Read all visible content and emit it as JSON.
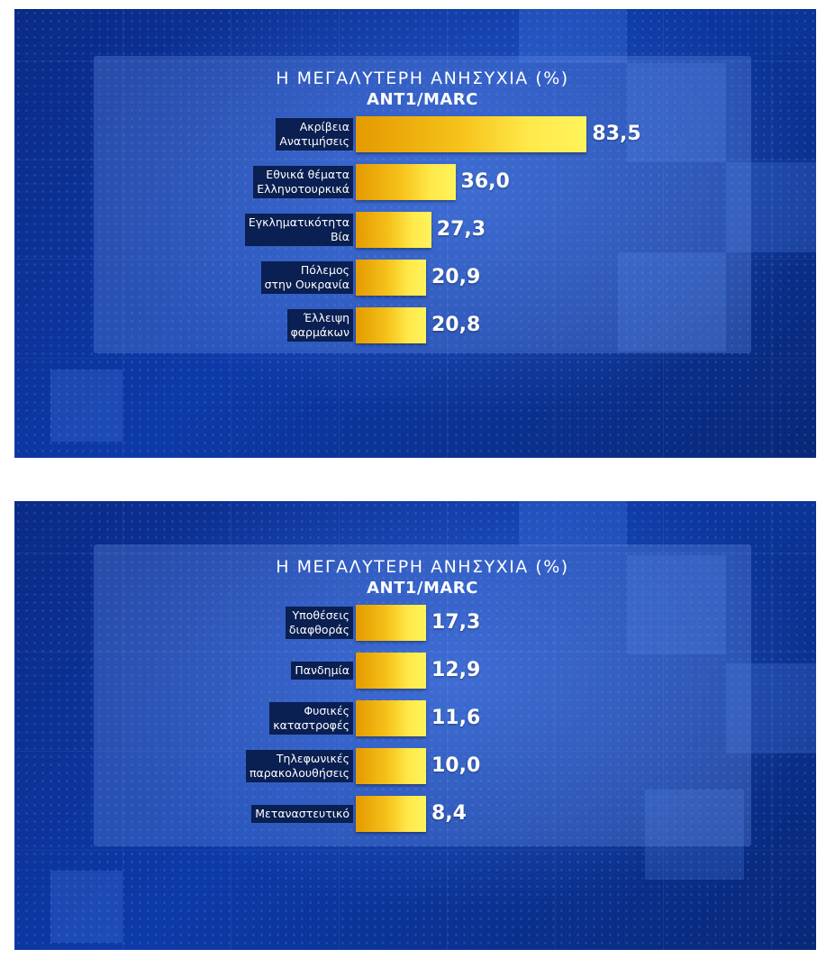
{
  "chart_data": [
    {
      "type": "bar",
      "title": "Η ΜΕΓΑΛΥΤΕΡΗ ΑΝΗΣΥΧΙΑ (%)",
      "subtitle": "ΑΝΤ1/MARC",
      "categories": [
        "Ακρίβεια\nΑνατιμήσεις",
        "Εθνικά θέματα\nΕλληνοτουρκικά",
        "Εγκληματικότητα\nΒία",
        "Πόλεμος\nστην Ουκρανία",
        "Έλλειψη\nφαρμάκων"
      ],
      "values": [
        83.5,
        36.0,
        27.3,
        20.9,
        20.8
      ],
      "value_labels": [
        "83,5",
        "36,0",
        "27,3",
        "20,9",
        "20,8"
      ],
      "xlim": [
        0,
        100
      ],
      "orientation": "horizontal",
      "bar_color": "#f6c21a"
    },
    {
      "type": "bar",
      "title": "Η ΜΕΓΑΛΥΤΕΡΗ ΑΝΗΣΥΧΙΑ (%)",
      "subtitle": "ΑΝΤ1/MARC",
      "categories": [
        "Υποθέσεις\nδιαφθοράς",
        "Πανδημία",
        "Φυσικές\nκαταστροφές",
        "Τηλεφωνικές\nπαρακολουθήσεις",
        "Μεταναστευτικό"
      ],
      "values": [
        17.3,
        12.9,
        11.6,
        10.0,
        8.4
      ],
      "value_labels": [
        "17,3",
        "12,9",
        "11,6",
        "10,0",
        "8,4"
      ],
      "xlim": [
        0,
        100
      ],
      "orientation": "horizontal",
      "bar_color": "#f6c21a"
    }
  ]
}
